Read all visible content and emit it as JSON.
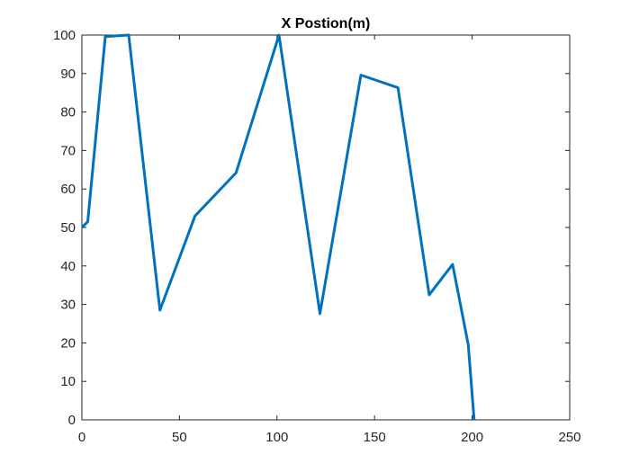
{
  "chart_data": {
    "type": "line",
    "title": "X Postion(m)",
    "xlabel": "",
    "ylabel": "",
    "xlim": [
      0,
      250
    ],
    "ylim": [
      0,
      100
    ],
    "xticks": [
      0,
      50,
      100,
      150,
      200,
      250
    ],
    "yticks": [
      0,
      10,
      20,
      30,
      40,
      50,
      60,
      70,
      80,
      90,
      100
    ],
    "grid": false,
    "series": [
      {
        "color": "#0072BD",
        "x": [
          0,
          3,
          12,
          24,
          40,
          58,
          79,
          101,
          122,
          143,
          162,
          178,
          190,
          198,
          201
        ],
        "y": [
          50,
          51.5,
          99.6,
          100,
          28.5,
          53,
          64.2,
          100,
          27.6,
          89.6,
          86.3,
          32.5,
          40.4,
          19.5,
          0
        ]
      }
    ]
  }
}
